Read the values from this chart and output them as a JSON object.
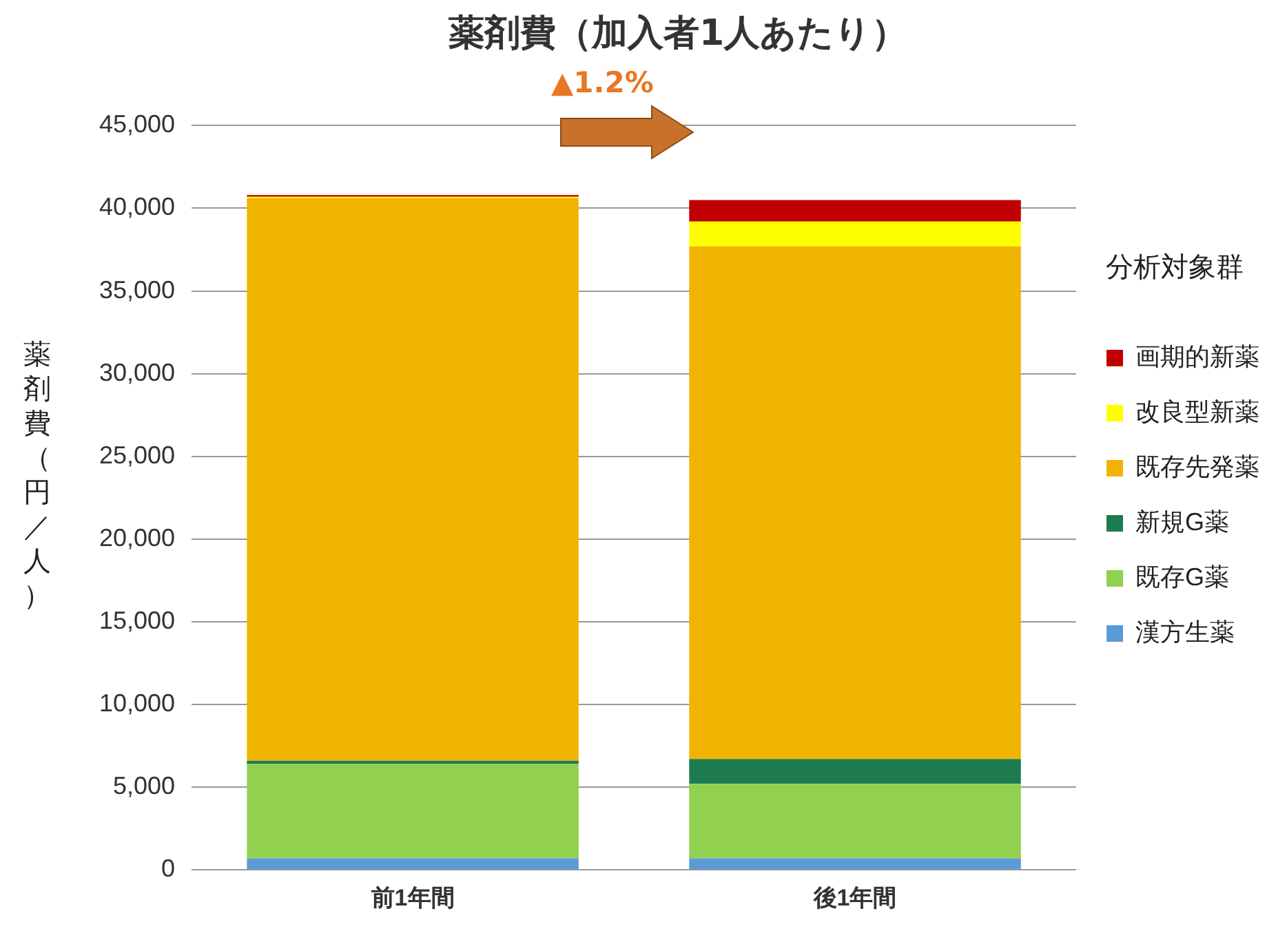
{
  "chart_data": {
    "type": "bar",
    "title": "薬剤費（加入者1人あたり）",
    "ylabel": "薬剤費（円／人）",
    "legend_title": "分析対象群",
    "categories": [
      "前1年間",
      "後1年間"
    ],
    "stacked": true,
    "series": [
      {
        "name": "漢方生薬",
        "color": "#5b9bd5",
        "values": [
          700,
          700
        ]
      },
      {
        "name": "既存G薬",
        "color": "#92d050",
        "values": [
          5700,
          4500
        ]
      },
      {
        "name": "新規G薬",
        "color": "#1e7b50",
        "values": [
          200,
          1500
        ]
      },
      {
        "name": "既存先発薬",
        "color": "#f0b400",
        "values": [
          34000,
          31000
        ]
      },
      {
        "name": "改良型新薬",
        "color": "#ffff00",
        "values": [
          100,
          1500
        ]
      },
      {
        "name": "画期的新薬",
        "color": "#c00000",
        "values": [
          100,
          1300
        ]
      }
    ],
    "ylim": [
      0,
      45000
    ],
    "yticks": [
      {
        "value": 0,
        "label": "0"
      },
      {
        "value": 5000,
        "label": "5,000"
      },
      {
        "value": 10000,
        "label": "10,000"
      },
      {
        "value": 15000,
        "label": "15,000"
      },
      {
        "value": 20000,
        "label": "20,000"
      },
      {
        "value": 25000,
        "label": "25,000"
      },
      {
        "value": 30000,
        "label": "30,000"
      },
      {
        "value": 35000,
        "label": "35,000"
      },
      {
        "value": 40000,
        "label": "40,000"
      },
      {
        "value": 45000,
        "label": "45,000"
      }
    ],
    "grid": "y",
    "legend": "right",
    "annotations": [
      "▲1.2%"
    ]
  }
}
